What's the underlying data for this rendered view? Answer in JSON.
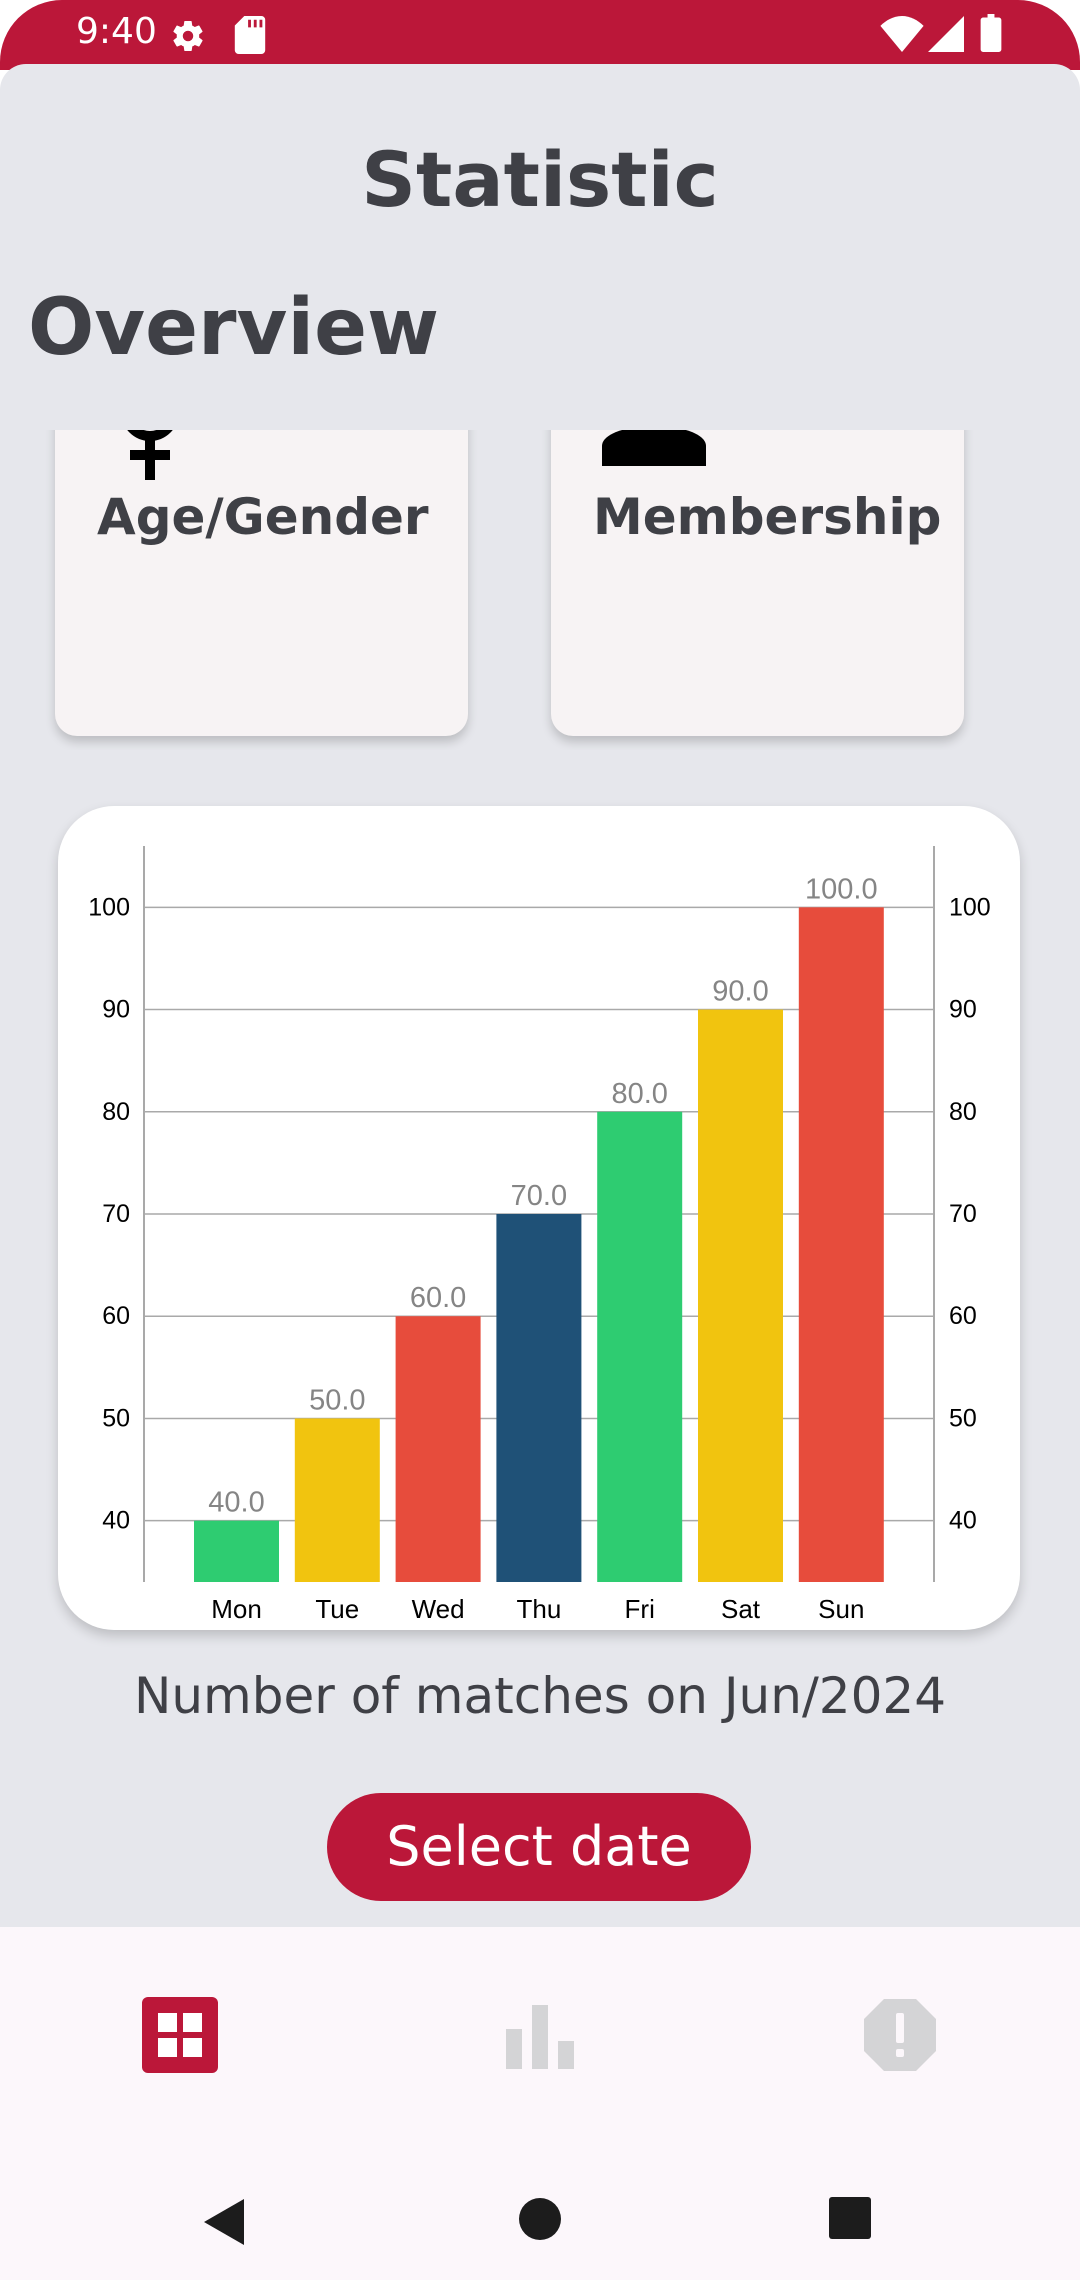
{
  "status_bar": {
    "time": "9:40"
  },
  "header": {
    "title": "Statistic"
  },
  "overview": {
    "title": "Overview",
    "cards": [
      {
        "label": "Age/Gender",
        "icon": "female-icon"
      },
      {
        "label": "Membership",
        "icon": "person-icon"
      }
    ]
  },
  "chart_data": {
    "type": "bar",
    "categories": [
      "Mon",
      "Tue",
      "Wed",
      "Thu",
      "Fri",
      "Sat",
      "Sun"
    ],
    "values": [
      40,
      50,
      60,
      70,
      80,
      90,
      100
    ],
    "value_labels": [
      "40.0",
      "50.0",
      "60.0",
      "70.0",
      "80.0",
      "90.0",
      "100.0"
    ],
    "colors": [
      "#2ecc71",
      "#f1c40f",
      "#e74c3c",
      "#1f5177",
      "#2ecc71",
      "#f1c40f",
      "#e74c3c"
    ],
    "ylim": [
      34,
      106
    ],
    "y_ticks": [
      40,
      50,
      60,
      70,
      80,
      90,
      100
    ],
    "grid": true,
    "right_axis": true,
    "title": "",
    "xlabel": "",
    "ylabel": ""
  },
  "caption": "Number of matches on Jun/2024",
  "select_button": {
    "label": "Select date"
  },
  "bottom_nav": {
    "items": [
      {
        "icon": "dashboard-icon",
        "active": true
      },
      {
        "icon": "bar-chart-icon",
        "active": false
      },
      {
        "icon": "alert-icon",
        "active": false
      }
    ]
  },
  "colors": {
    "accent": "#bb1739",
    "background": "#e6e7ec",
    "text": "#3f4046"
  }
}
